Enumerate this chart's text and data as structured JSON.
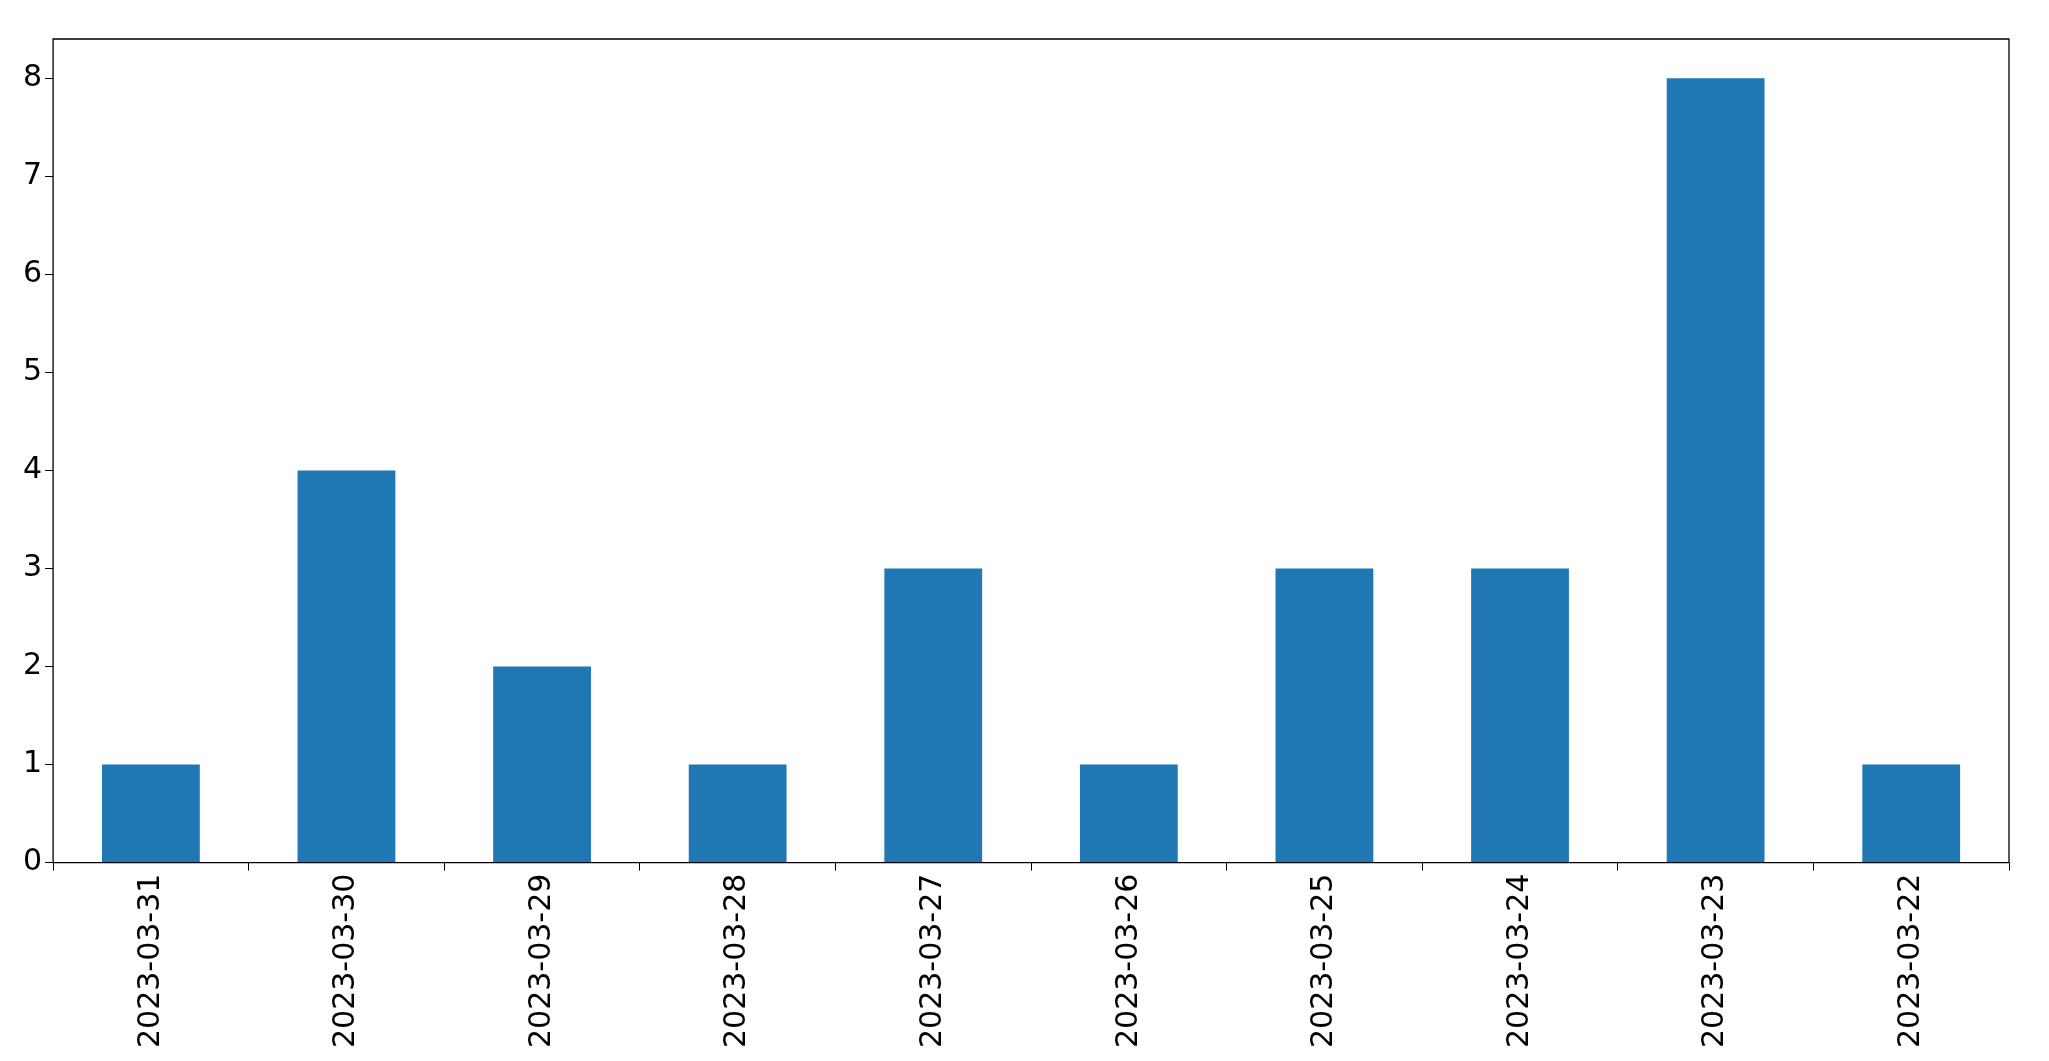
{
  "chart_data": {
    "type": "bar",
    "categories": [
      "2023-03-31",
      "2023-03-30",
      "2023-03-29",
      "2023-03-28",
      "2023-03-27",
      "2023-03-26",
      "2023-03-25",
      "2023-03-24",
      "2023-03-23",
      "2023-03-22"
    ],
    "values": [
      1,
      4,
      2,
      1,
      3,
      1,
      3,
      3,
      8,
      1
    ],
    "color": "#1f77b4",
    "ylim": [
      0,
      8.4
    ],
    "yticks": [
      0,
      1,
      2,
      3,
      4,
      5,
      6,
      7,
      8
    ],
    "grid": false,
    "legend": false
  }
}
